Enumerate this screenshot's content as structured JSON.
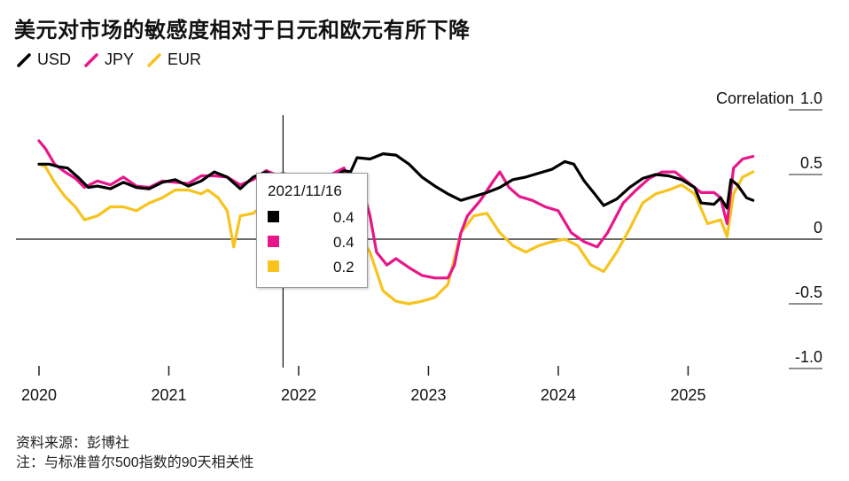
{
  "title": "美元对市场的敏感度相对于日元和欧元有所下降",
  "legend": [
    {
      "label": "USD",
      "color": "#000000"
    },
    {
      "label": "JPY",
      "color": "#e8168a"
    },
    {
      "label": "EUR",
      "color": "#f7c31d"
    }
  ],
  "chart_data": {
    "type": "line",
    "ylabel": "Correlation",
    "ylim": [
      -1.0,
      1.0
    ],
    "yticks": [
      {
        "value": 1.0,
        "label": "1.0"
      },
      {
        "value": 0.5,
        "label": "0.5"
      },
      {
        "value": 0,
        "label": "0"
      },
      {
        "value": -0.5,
        "label": "-0.5"
      },
      {
        "value": -1.0,
        "label": "-1.0"
      }
    ],
    "xlim": [
      2020.0,
      2025.55
    ],
    "xticks": [
      {
        "value": 2020,
        "label": "2020"
      },
      {
        "value": 2021,
        "label": "2021"
      },
      {
        "value": 2022,
        "label": "2022"
      },
      {
        "value": 2023,
        "label": "2023"
      },
      {
        "value": 2024,
        "label": "2024"
      },
      {
        "value": 2025,
        "label": "2025"
      }
    ],
    "series": [
      {
        "name": "USD",
        "color": "#000000",
        "points": [
          [
            2020.0,
            0.58
          ],
          [
            2020.08,
            0.58
          ],
          [
            2020.15,
            0.56
          ],
          [
            2020.22,
            0.55
          ],
          [
            2020.3,
            0.48
          ],
          [
            2020.38,
            0.4
          ],
          [
            2020.45,
            0.41
          ],
          [
            2020.55,
            0.39
          ],
          [
            2020.65,
            0.44
          ],
          [
            2020.75,
            0.4
          ],
          [
            2020.85,
            0.39
          ],
          [
            2020.95,
            0.44
          ],
          [
            2021.05,
            0.46
          ],
          [
            2021.15,
            0.41
          ],
          [
            2021.25,
            0.45
          ],
          [
            2021.35,
            0.52
          ],
          [
            2021.45,
            0.48
          ],
          [
            2021.55,
            0.39
          ],
          [
            2021.65,
            0.48
          ],
          [
            2021.75,
            0.52
          ],
          [
            2021.82,
            0.48
          ],
          [
            2021.88,
            0.4
          ],
          [
            2021.95,
            0.38
          ],
          [
            2022.05,
            0.47
          ],
          [
            2022.15,
            0.42
          ],
          [
            2022.25,
            0.47
          ],
          [
            2022.35,
            0.53
          ],
          [
            2022.4,
            0.52
          ],
          [
            2022.45,
            0.63
          ],
          [
            2022.55,
            0.62
          ],
          [
            2022.65,
            0.66
          ],
          [
            2022.75,
            0.65
          ],
          [
            2022.85,
            0.58
          ],
          [
            2022.95,
            0.48
          ],
          [
            2023.05,
            0.41
          ],
          [
            2023.15,
            0.35
          ],
          [
            2023.25,
            0.3
          ],
          [
            2023.35,
            0.33
          ],
          [
            2023.45,
            0.36
          ],
          [
            2023.55,
            0.4
          ],
          [
            2023.65,
            0.46
          ],
          [
            2023.75,
            0.48
          ],
          [
            2023.85,
            0.51
          ],
          [
            2023.95,
            0.54
          ],
          [
            2024.05,
            0.6
          ],
          [
            2024.12,
            0.58
          ],
          [
            2024.2,
            0.45
          ],
          [
            2024.28,
            0.35
          ],
          [
            2024.35,
            0.26
          ],
          [
            2024.45,
            0.31
          ],
          [
            2024.55,
            0.4
          ],
          [
            2024.65,
            0.47
          ],
          [
            2024.75,
            0.5
          ],
          [
            2024.85,
            0.49
          ],
          [
            2024.95,
            0.46
          ],
          [
            2025.05,
            0.4
          ],
          [
            2025.1,
            0.28
          ],
          [
            2025.2,
            0.27
          ],
          [
            2025.25,
            0.32
          ],
          [
            2025.3,
            0.24
          ],
          [
            2025.33,
            0.46
          ],
          [
            2025.38,
            0.42
          ],
          [
            2025.45,
            0.32
          ],
          [
            2025.5,
            0.3
          ]
        ]
      },
      {
        "name": "JPY",
        "color": "#e8168a",
        "points": [
          [
            2020.0,
            0.76
          ],
          [
            2020.05,
            0.7
          ],
          [
            2020.12,
            0.58
          ],
          [
            2020.2,
            0.52
          ],
          [
            2020.28,
            0.47
          ],
          [
            2020.35,
            0.4
          ],
          [
            2020.45,
            0.45
          ],
          [
            2020.55,
            0.42
          ],
          [
            2020.65,
            0.48
          ],
          [
            2020.75,
            0.41
          ],
          [
            2020.85,
            0.4
          ],
          [
            2020.95,
            0.45
          ],
          [
            2021.05,
            0.44
          ],
          [
            2021.15,
            0.43
          ],
          [
            2021.25,
            0.49
          ],
          [
            2021.35,
            0.49
          ],
          [
            2021.45,
            0.48
          ],
          [
            2021.55,
            0.42
          ],
          [
            2021.65,
            0.46
          ],
          [
            2021.75,
            0.53
          ],
          [
            2021.82,
            0.5
          ],
          [
            2021.88,
            0.42
          ],
          [
            2021.95,
            0.35
          ],
          [
            2022.05,
            0.44
          ],
          [
            2022.15,
            0.45
          ],
          [
            2022.25,
            0.5
          ],
          [
            2022.35,
            0.55
          ],
          [
            2022.42,
            0.37
          ],
          [
            2022.5,
            0.36
          ],
          [
            2022.55,
            0.18
          ],
          [
            2022.6,
            -0.1
          ],
          [
            2022.68,
            -0.2
          ],
          [
            2022.75,
            -0.15
          ],
          [
            2022.85,
            -0.22
          ],
          [
            2022.95,
            -0.28
          ],
          [
            2023.05,
            -0.3
          ],
          [
            2023.15,
            -0.3
          ],
          [
            2023.2,
            -0.2
          ],
          [
            2023.25,
            0.05
          ],
          [
            2023.3,
            0.18
          ],
          [
            2023.4,
            0.3
          ],
          [
            2023.5,
            0.45
          ],
          [
            2023.55,
            0.52
          ],
          [
            2023.62,
            0.4
          ],
          [
            2023.7,
            0.33
          ],
          [
            2023.8,
            0.3
          ],
          [
            2023.9,
            0.25
          ],
          [
            2024.0,
            0.22
          ],
          [
            2024.1,
            0.05
          ],
          [
            2024.2,
            -0.02
          ],
          [
            2024.3,
            -0.06
          ],
          [
            2024.38,
            0.05
          ],
          [
            2024.5,
            0.28
          ],
          [
            2024.6,
            0.38
          ],
          [
            2024.7,
            0.47
          ],
          [
            2024.8,
            0.52
          ],
          [
            2024.9,
            0.52
          ],
          [
            2025.0,
            0.44
          ],
          [
            2025.1,
            0.36
          ],
          [
            2025.2,
            0.36
          ],
          [
            2025.25,
            0.32
          ],
          [
            2025.3,
            0.12
          ],
          [
            2025.35,
            0.55
          ],
          [
            2025.42,
            0.62
          ],
          [
            2025.5,
            0.64
          ]
        ]
      },
      {
        "name": "EUR",
        "color": "#f7c31d",
        "points": [
          [
            2020.0,
            0.58
          ],
          [
            2020.05,
            0.56
          ],
          [
            2020.12,
            0.44
          ],
          [
            2020.2,
            0.33
          ],
          [
            2020.28,
            0.25
          ],
          [
            2020.35,
            0.15
          ],
          [
            2020.45,
            0.18
          ],
          [
            2020.55,
            0.25
          ],
          [
            2020.65,
            0.25
          ],
          [
            2020.75,
            0.22
          ],
          [
            2020.85,
            0.28
          ],
          [
            2020.95,
            0.32
          ],
          [
            2021.05,
            0.38
          ],
          [
            2021.15,
            0.38
          ],
          [
            2021.25,
            0.35
          ],
          [
            2021.3,
            0.38
          ],
          [
            2021.38,
            0.32
          ],
          [
            2021.45,
            0.22
          ],
          [
            2021.5,
            -0.06
          ],
          [
            2021.55,
            0.18
          ],
          [
            2021.65,
            0.2
          ],
          [
            2021.75,
            0.28
          ],
          [
            2021.82,
            0.25
          ],
          [
            2021.88,
            0.2
          ],
          [
            2021.95,
            0.35
          ],
          [
            2022.05,
            0.28
          ],
          [
            2022.15,
            0.25
          ],
          [
            2022.25,
            0.22
          ],
          [
            2022.35,
            0.1
          ],
          [
            2022.45,
            0.05
          ],
          [
            2022.55,
            -0.1
          ],
          [
            2022.65,
            -0.4
          ],
          [
            2022.75,
            -0.48
          ],
          [
            2022.85,
            -0.5
          ],
          [
            2022.95,
            -0.48
          ],
          [
            2023.05,
            -0.45
          ],
          [
            2023.15,
            -0.35
          ],
          [
            2023.25,
            0.05
          ],
          [
            2023.35,
            0.18
          ],
          [
            2023.45,
            0.2
          ],
          [
            2023.55,
            0.05
          ],
          [
            2023.65,
            -0.05
          ],
          [
            2023.75,
            -0.1
          ],
          [
            2023.85,
            -0.05
          ],
          [
            2023.95,
            -0.02
          ],
          [
            2024.05,
            0.0
          ],
          [
            2024.15,
            -0.05
          ],
          [
            2024.25,
            -0.2
          ],
          [
            2024.35,
            -0.25
          ],
          [
            2024.45,
            -0.1
          ],
          [
            2024.55,
            0.08
          ],
          [
            2024.65,
            0.28
          ],
          [
            2024.75,
            0.35
          ],
          [
            2024.85,
            0.38
          ],
          [
            2024.95,
            0.42
          ],
          [
            2025.05,
            0.35
          ],
          [
            2025.15,
            0.12
          ],
          [
            2025.25,
            0.15
          ],
          [
            2025.3,
            0.02
          ],
          [
            2025.35,
            0.35
          ],
          [
            2025.42,
            0.48
          ],
          [
            2025.5,
            0.52
          ]
        ]
      }
    ],
    "crosshair": {
      "x": 2021.88,
      "label": "2021/11/16"
    }
  },
  "tooltip": {
    "date": "2021/11/16",
    "rows": [
      {
        "color": "#000000",
        "value": "0.4"
      },
      {
        "color": "#e8168a",
        "value": "0.4"
      },
      {
        "color": "#f7c31d",
        "value": "0.2"
      }
    ]
  },
  "source": {
    "line1": "资料来源：彭博社",
    "line2": "注：与标准普尔500指数的90天相关性"
  }
}
